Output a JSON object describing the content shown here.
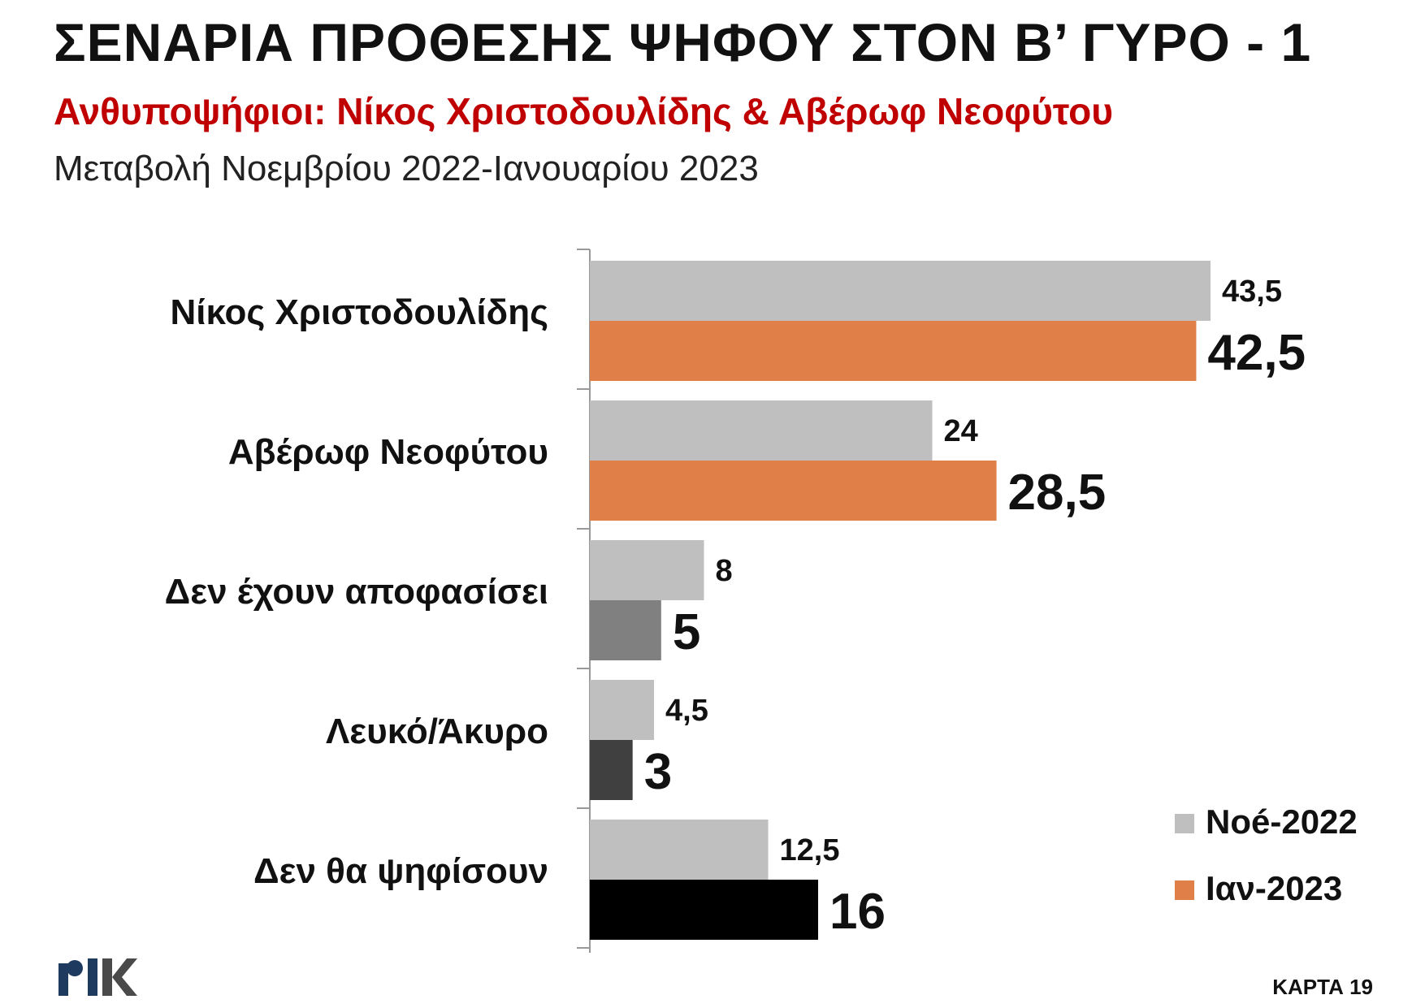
{
  "header": {
    "title": "ΣΕΝΑΡΙΑ ΠΡΟΘΕΣΗΣ ΨΗΦΟΥ ΣΤΟΝ Β’ ΓΥΡΟ - 1",
    "subtitle": "Ανθυποψήφιοι: Νίκος Χριστοδουλίδης & Αβέρωφ Νεοφύτου",
    "period": "Μεταβολή Νοεμβρίου 2022-Ιανουαρίου 2023"
  },
  "chart_data": {
    "type": "bar",
    "orientation": "horizontal",
    "categories": [
      "Νίκος Χριστοδουλίδης",
      "Αβέρωφ Νεοφύτου",
      "Δεν έχουν αποφασίσει",
      "Λευκό/Άκυρο",
      "Δεν θα ψηφίσουν"
    ],
    "series": [
      {
        "name": "Noé-2022",
        "values": [
          43.5,
          24,
          8,
          4.5,
          12.5
        ],
        "labels": [
          "43,5",
          "24",
          "8",
          "4,5",
          "12,5"
        ],
        "color": "#bfbfbf"
      },
      {
        "name": "Ιαν-2023",
        "values": [
          42.5,
          28.5,
          5,
          3,
          16
        ],
        "labels": [
          "42,5",
          "28,5",
          "5",
          "3",
          "16"
        ],
        "color": "#e07f47",
        "point_colors": [
          "#e07f47",
          "#e07f47",
          "#808080",
          "#404040",
          "#000000"
        ]
      }
    ],
    "xlim": [
      0,
      50
    ],
    "grid": false,
    "legend_position": "bottom-right"
  },
  "legend": [
    {
      "label": "Noé-2022",
      "color": "#bfbfbf"
    },
    {
      "label": "Ιαν-2023",
      "color": "#e07f47"
    }
  ],
  "footer": {
    "card": "ΚΑΡΤΑ 19",
    "logo": "ΡΙΚ"
  }
}
